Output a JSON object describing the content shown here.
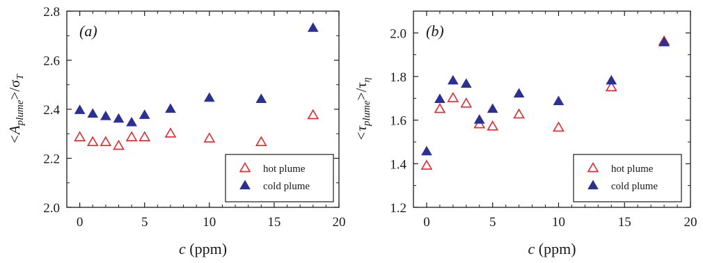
{
  "chart_data": [
    {
      "type": "scatter",
      "panel_label": "(a)",
      "ylabel_main": "<A",
      "ylabel_sub": "plume",
      "ylabel_tail": ">/σ",
      "ylabel_tail_sub": "T",
      "xlabel_var": "c",
      "xlabel_unit": " (ppm)",
      "xlim": [
        -1,
        20
      ],
      "ylim": [
        2.0,
        2.8
      ],
      "xticks": [
        0,
        5,
        10,
        15,
        20
      ],
      "yticks": [
        2.0,
        2.2,
        2.4,
        2.6,
        2.8
      ],
      "grid": false,
      "legend_position": "bottom-right",
      "series": [
        {
          "name": "hot plume",
          "marker": "open-triangle",
          "color": "#e8262b",
          "x": [
            0,
            1,
            2,
            3,
            4,
            5,
            7,
            10,
            14,
            18
          ],
          "y": [
            2.285,
            2.265,
            2.265,
            2.25,
            2.285,
            2.285,
            2.3,
            2.28,
            2.265,
            2.375
          ]
        },
        {
          "name": "cold plume",
          "marker": "filled-triangle",
          "color": "#2a3193",
          "x": [
            0,
            1,
            2,
            3,
            4,
            5,
            7,
            10,
            14,
            18
          ],
          "y": [
            2.395,
            2.38,
            2.37,
            2.36,
            2.345,
            2.375,
            2.4,
            2.445,
            2.44,
            2.73
          ]
        }
      ]
    },
    {
      "type": "scatter",
      "panel_label": "(b)",
      "ylabel_main": "<τ",
      "ylabel_sub": "plume",
      "ylabel_tail": ">/τ",
      "ylabel_tail_sub": "η",
      "xlabel_var": "c",
      "xlabel_unit": " (ppm)",
      "xlim": [
        -1,
        20
      ],
      "ylim": [
        1.2,
        2.1
      ],
      "xticks": [
        0,
        5,
        10,
        15,
        20
      ],
      "yticks": [
        1.2,
        1.4,
        1.6,
        1.8,
        2.0
      ],
      "grid": false,
      "legend_position": "bottom-right",
      "series": [
        {
          "name": "hot plume",
          "marker": "open-triangle",
          "color": "#e8262b",
          "x": [
            0,
            1,
            2,
            3,
            4,
            5,
            7,
            10,
            14,
            18
          ],
          "y": [
            1.39,
            1.65,
            1.7,
            1.675,
            1.58,
            1.57,
            1.625,
            1.565,
            1.75,
            1.96
          ]
        },
        {
          "name": "cold plume",
          "marker": "filled-triangle",
          "color": "#2a3193",
          "x": [
            0,
            1,
            2,
            3,
            4,
            5,
            7,
            10,
            14,
            18
          ],
          "y": [
            1.455,
            1.695,
            1.78,
            1.765,
            1.6,
            1.65,
            1.72,
            1.685,
            1.78,
            1.955
          ]
        }
      ]
    }
  ]
}
